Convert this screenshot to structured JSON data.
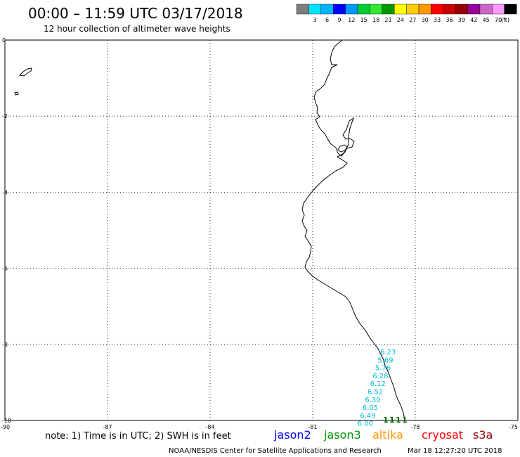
{
  "header": {
    "title": "00:00 – 11:59 UTC 03/17/2018",
    "subtitle": "12 hour collection of altimeter wave heights"
  },
  "legend": {
    "unit": "(ft)",
    "swatches": [
      {
        "label": "",
        "color": "#7f7f7f"
      },
      {
        "label": "3",
        "color": "#00e5ff"
      },
      {
        "label": "6",
        "color": "#00b3ff"
      },
      {
        "label": "9",
        "color": "#0000ff"
      },
      {
        "label": "12",
        "color": "#0099ff"
      },
      {
        "label": "15",
        "color": "#00cc33"
      },
      {
        "label": "18",
        "color": "#33e633"
      },
      {
        "label": "21",
        "color": "#009900"
      },
      {
        "label": "24",
        "color": "#ffff00"
      },
      {
        "label": "27",
        "color": "#ffcc00"
      },
      {
        "label": "30",
        "color": "#ff9900"
      },
      {
        "label": "33",
        "color": "#ff0000"
      },
      {
        "label": "36",
        "color": "#cc0000"
      },
      {
        "label": "39",
        "color": "#990000"
      },
      {
        "label": "42",
        "color": "#990099"
      },
      {
        "label": "45",
        "color": "#cc66cc"
      },
      {
        "label": "70",
        "color": "#ff99ff"
      },
      {
        "label": "",
        "color": "#000000"
      }
    ]
  },
  "map": {
    "lon_range": [
      -90,
      -75
    ],
    "lat_range": [
      -10,
      0
    ],
    "lon_ticks": [
      "-90",
      "-87",
      "-84",
      "-81",
      "-78",
      "-75"
    ],
    "lat_ticks": [
      "0",
      "-2",
      "-4",
      "-6",
      "-8",
      "-10"
    ],
    "grid": true
  },
  "observations": {
    "cyan_color": "#00bfd8",
    "green_color": "#006600",
    "swh_values": [
      "6.23",
      "5.69",
      "5.76",
      "6.28",
      "6.12",
      "6.52",
      "6.30",
      "6.05",
      "6.49",
      "6.00"
    ],
    "time_marks": [
      "1",
      "1",
      "1",
      "1"
    ]
  },
  "footer": {
    "note": "note: 1) Time is in UTC; 2) SWH is in feet",
    "satellites": [
      {
        "name": "jason2",
        "color": "#0000ff"
      },
      {
        "name": "jason3",
        "color": "#009900"
      },
      {
        "name": "altika",
        "color": "#ff9900"
      },
      {
        "name": "cryosat",
        "color": "#ff0000"
      },
      {
        "name": "s3a",
        "color": "#990000"
      }
    ],
    "credit": "NOAA/NESDIS Center for Satellite Applications and Research",
    "timestamp": "Mar 18 12:27:20 UTC 2018"
  }
}
